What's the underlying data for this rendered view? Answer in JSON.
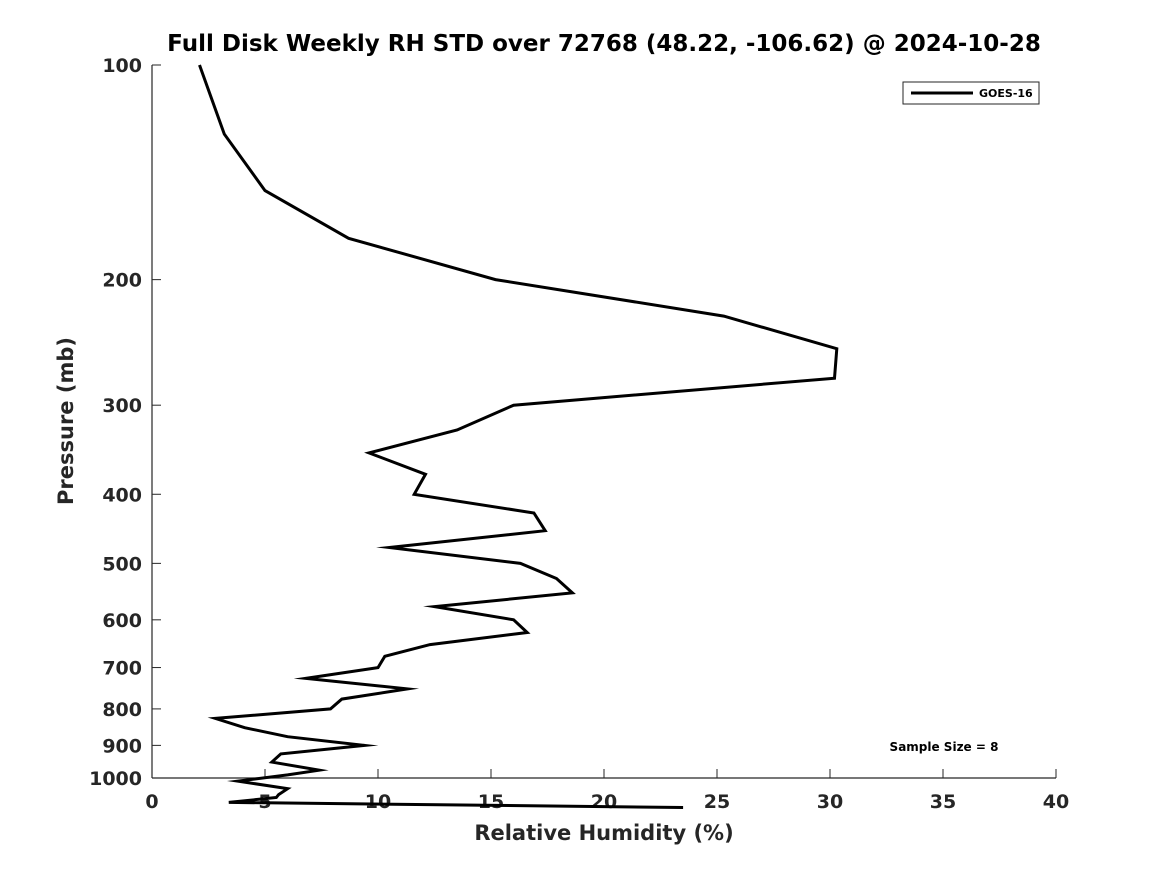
{
  "chart_data": {
    "type": "line",
    "title": "Full Disk Weekly RH STD over 72768 (48.22, -106.62) @ 2024-10-28",
    "xlabel": "Relative Humidity (%)",
    "ylabel": "Pressure (mb)",
    "xlim": [
      0,
      40
    ],
    "ylim": [
      100,
      1000
    ],
    "y_scale": "log",
    "y_reversed": true,
    "x_ticks": [
      0,
      5,
      10,
      15,
      20,
      25,
      30,
      35,
      40
    ],
    "y_ticks": [
      100,
      200,
      300,
      400,
      500,
      600,
      700,
      800,
      900,
      1000
    ],
    "grid": false,
    "legend_position": "top-right",
    "annotation": "Sample Size = 8",
    "series": [
      {
        "name": "GOES-16",
        "color": "#000000",
        "points": [
          [
            2.1,
            100
          ],
          [
            3.2,
            125
          ],
          [
            5.0,
            150
          ],
          [
            8.7,
            175
          ],
          [
            15.2,
            200
          ],
          [
            25.3,
            225
          ],
          [
            30.3,
            250
          ],
          [
            30.2,
            275
          ],
          [
            16.0,
            300
          ],
          [
            13.5,
            325
          ],
          [
            9.6,
            350
          ],
          [
            12.1,
            375
          ],
          [
            11.6,
            400
          ],
          [
            16.9,
            425
          ],
          [
            17.4,
            450
          ],
          [
            10.5,
            475
          ],
          [
            16.3,
            500
          ],
          [
            17.9,
            525
          ],
          [
            18.6,
            550
          ],
          [
            12.5,
            575
          ],
          [
            16.0,
            600
          ],
          [
            16.6,
            625
          ],
          [
            12.3,
            650
          ],
          [
            10.3,
            675
          ],
          [
            10.0,
            700
          ],
          [
            6.8,
            725
          ],
          [
            11.3,
            750
          ],
          [
            8.4,
            775
          ],
          [
            7.9,
            800
          ],
          [
            2.8,
            825
          ],
          [
            4.1,
            850
          ],
          [
            6.0,
            875
          ],
          [
            9.4,
            900
          ],
          [
            5.7,
            925
          ],
          [
            5.3,
            950
          ],
          [
            7.4,
            975
          ],
          [
            6.0,
            990
          ],
          [
            3.8,
            1010
          ],
          [
            6.0,
            1035
          ],
          [
            5.6,
            1055
          ],
          [
            5.5,
            1065
          ],
          [
            3.4,
            1082
          ],
          [
            23.5,
            1100
          ]
        ]
      }
    ]
  }
}
